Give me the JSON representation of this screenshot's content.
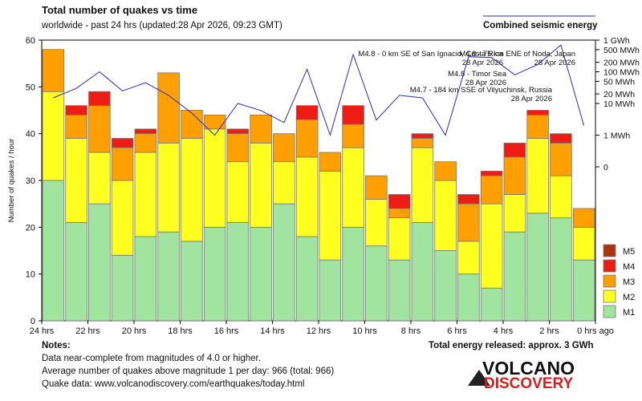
{
  "chart_data": {
    "type": "bar",
    "stacked": true,
    "title": "Total number of quakes vs time",
    "subtitle": "worldwide - past 24 hrs (updated:28 Apr 2026, 09:23 GMT)",
    "ylabel": "Number of quakes / hour",
    "ylim": [
      0,
      60
    ],
    "yticks": [
      0,
      10,
      20,
      30,
      40,
      50,
      60
    ],
    "x_tick_labels": [
      "24 hrs",
      "22 hrs",
      "20 hrs",
      "18 hrs",
      "16 hrs",
      "14 hrs",
      "12 hrs",
      "10 hrs",
      "8 hrs",
      "6 hrs",
      "4 hrs",
      "2 hrs",
      "0 hrs ago"
    ],
    "num_bins": 24,
    "series": [
      {
        "name": "M1",
        "color": "#a0e4a0",
        "values": [
          30,
          21,
          25,
          14,
          18,
          19,
          17,
          20,
          21,
          20,
          25,
          18,
          13,
          20,
          16,
          13,
          21,
          15,
          10,
          7,
          19,
          23,
          22,
          13
        ]
      },
      {
        "name": "M2",
        "color": "#ffff20",
        "values": [
          19,
          18,
          11,
          16,
          18,
          19,
          22,
          21,
          13,
          18,
          9,
          17,
          19,
          17,
          10,
          9,
          16,
          15,
          7,
          18,
          8,
          16,
          9,
          7
        ]
      },
      {
        "name": "M3",
        "color": "#ffa000",
        "values": [
          9,
          5,
          10,
          7,
          4,
          15,
          6,
          3,
          6,
          6,
          6,
          8,
          4,
          5,
          5,
          2,
          2,
          4,
          8,
          6,
          8,
          5,
          7,
          4
        ]
      },
      {
        "name": "M4",
        "color": "#ee1c14",
        "values": [
          0,
          2,
          3,
          2,
          1,
          0,
          0,
          0,
          1,
          0,
          0,
          3,
          0,
          4,
          0,
          3,
          1,
          0,
          2,
          1,
          3,
          1,
          2,
          0
        ]
      },
      {
        "name": "M5",
        "color": "#aa3311",
        "values": [
          0,
          0,
          0,
          0,
          0,
          0,
          0,
          0,
          0,
          0,
          0,
          0,
          0,
          0,
          0,
          0,
          0,
          0,
          0,
          0,
          0,
          0,
          0,
          0
        ]
      }
    ],
    "legend_order": [
      "M5",
      "M4",
      "M3",
      "M2",
      "M1"
    ],
    "legend_position": "bottom-right",
    "energy_legend": "Combined seismic energy",
    "energy_axis_labels": [
      "1 GWh",
      "500 MWh",
      "200 MWh",
      "100 MWh",
      "50 MWh",
      "20 MWh",
      "10 MWh",
      "1 MWh",
      "0"
    ],
    "energy_axis_values_mwh": [
      1000,
      500,
      200,
      100,
      50,
      20,
      10,
      1,
      0.1
    ],
    "energy_mwh": [
      15,
      30,
      100,
      25,
      45,
      18,
      5,
      1,
      10,
      6,
      2.5,
      120,
      1,
      350,
      3,
      18,
      15,
      1,
      300,
      280,
      80,
      170,
      700,
      2
    ],
    "annotations": [
      {
        "lines": [
          "M4.8 - 0 km SE of San Ignacio, Costa Rica",
          "28 Apr 2026"
        ]
      },
      {
        "lines": [
          "M4.8 - 75 km ENE of Noda, Japan",
          "28 Apr 2026"
        ]
      },
      {
        "lines": [
          "M4.8 - Timor Sea",
          "28 Apr 2026"
        ]
      },
      {
        "lines": [
          "M4.7 - 184 km SSE of Vilyuchinsk, Russia",
          "28 Apr 2026"
        ]
      }
    ]
  },
  "notes": {
    "heading": "Notes:",
    "lines": [
      "Data near-complete from magnitudes of 4.0 or higher.",
      "Average number of quakes above magnitude 1 per day: 966 (total: 966)",
      "Quake data: www.volcanodiscovery.com/earthquakes/today.html"
    ]
  },
  "total_energy": "Total energy released: approx. 3 GWh",
  "logo": {
    "line1": "VOLCANO",
    "line2": "DISCOVERY"
  }
}
